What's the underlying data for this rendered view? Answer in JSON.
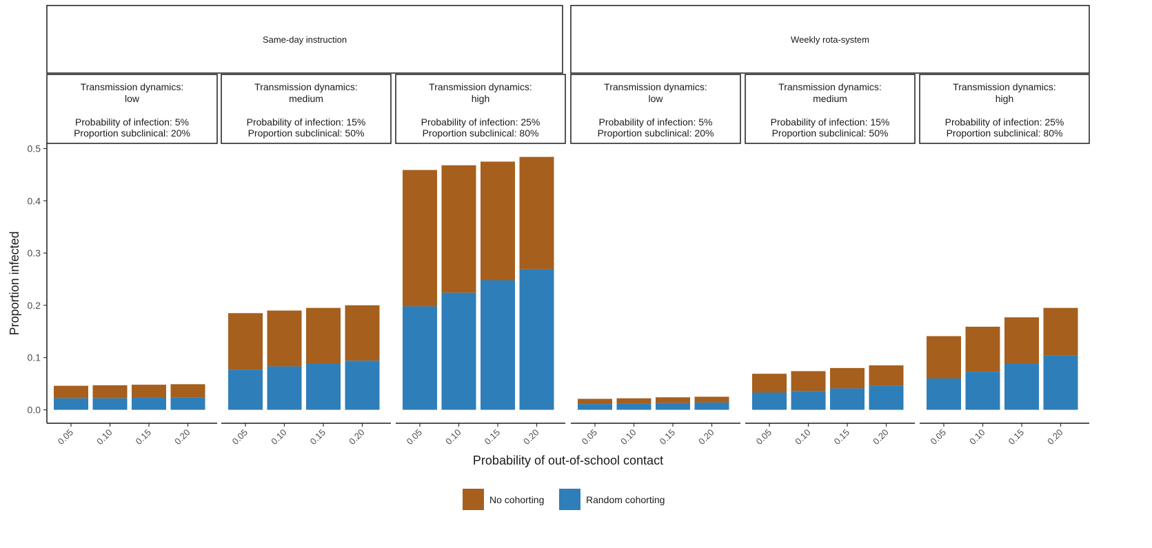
{
  "chart_data": {
    "type": "bar",
    "stacked": true,
    "ylabel": "Proportion infected",
    "xlabel": "Probability of out-of-school contact",
    "ylim": [
      0,
      0.5
    ],
    "yticks": [
      0.0,
      0.1,
      0.2,
      0.3,
      0.4,
      0.5
    ],
    "ytick_labels": [
      "0.0",
      "0.1",
      "0.2",
      "0.3",
      "0.4",
      "0.5"
    ],
    "categories": [
      "0.05",
      "0.10",
      "0.15",
      "0.20"
    ],
    "grid": false,
    "legend_position": "bottom",
    "series": [
      {
        "name": "No cohorting",
        "color": "#A65F1D"
      },
      {
        "name": "Random cohorting",
        "color": "#2E7EBA"
      }
    ],
    "groups": [
      {
        "label": "Same-day instruction",
        "panels": [
          {
            "label_lines": [
              "Transmission dynamics:",
              "low",
              "",
              "Probability of infection: 5%",
              "Proportion subclinical: 20%"
            ],
            "random": [
              0.022,
              0.022,
              0.023,
              0.024
            ],
            "total": [
              0.046,
              0.047,
              0.048,
              0.049
            ]
          },
          {
            "label_lines": [
              "Transmission dynamics:",
              "medium",
              "",
              "Probability of infection: 15%",
              "Proportion subclinical: 50%"
            ],
            "random": [
              0.077,
              0.083,
              0.089,
              0.094
            ],
            "total": [
              0.185,
              0.19,
              0.195,
              0.2
            ]
          },
          {
            "label_lines": [
              "Transmission dynamics:",
              "high",
              "",
              "Probability of infection: 25%",
              "Proportion subclinical: 80%"
            ],
            "random": [
              0.198,
              0.224,
              0.248,
              0.269
            ],
            "total": [
              0.459,
              0.468,
              0.475,
              0.484
            ]
          }
        ]
      },
      {
        "label": "Weekly rota-system",
        "panels": [
          {
            "label_lines": [
              "Transmission dynamics:",
              "low",
              "",
              "Probability of infection: 5%",
              "Proportion subclinical: 20%"
            ],
            "random": [
              0.011,
              0.012,
              0.013,
              0.014
            ],
            "total": [
              0.021,
              0.022,
              0.024,
              0.025
            ]
          },
          {
            "label_lines": [
              "Transmission dynamics:",
              "medium",
              "",
              "Probability of infection: 15%",
              "Proportion subclinical: 50%"
            ],
            "random": [
              0.033,
              0.036,
              0.041,
              0.046
            ],
            "total": [
              0.069,
              0.074,
              0.08,
              0.085
            ]
          },
          {
            "label_lines": [
              "Transmission dynamics:",
              "high",
              "",
              "Probability of infection: 25%",
              "Proportion subclinical: 80%"
            ],
            "random": [
              0.06,
              0.073,
              0.089,
              0.104
            ],
            "total": [
              0.141,
              0.159,
              0.177,
              0.195
            ]
          }
        ]
      }
    ]
  }
}
